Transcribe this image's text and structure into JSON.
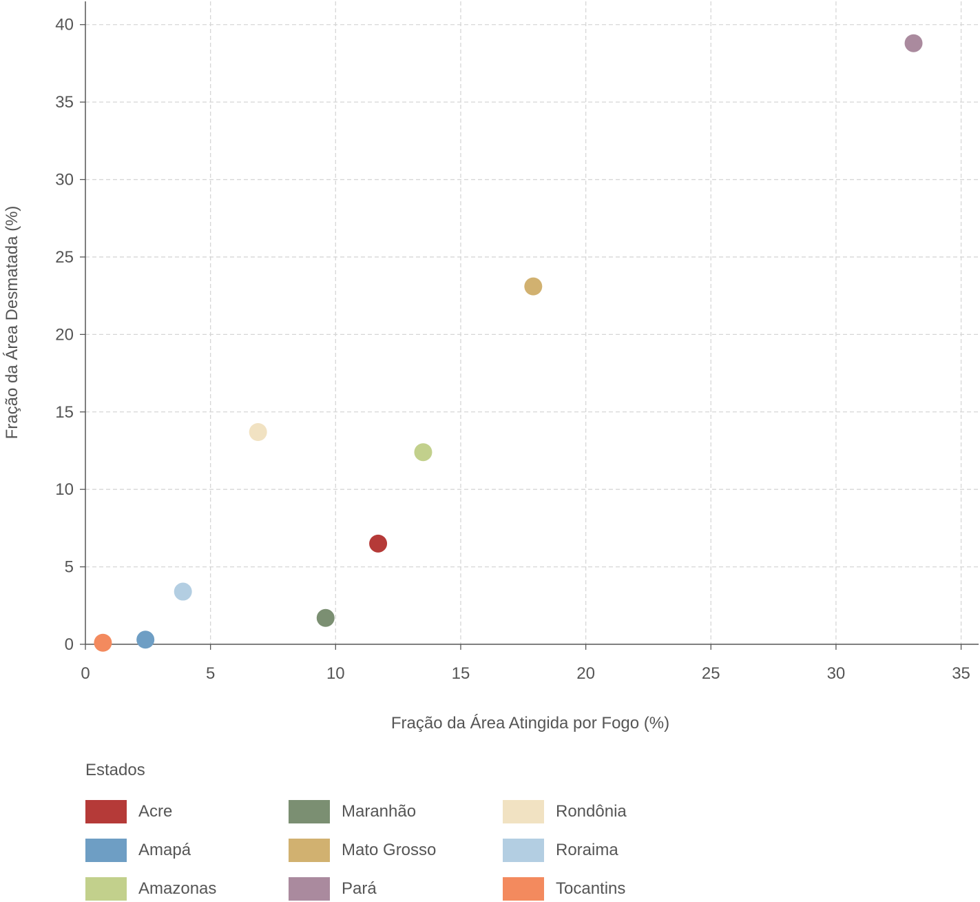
{
  "chart_data": {
    "type": "scatter",
    "title": "",
    "xlabel": "Fração da Área Atingida por Fogo (%)",
    "ylabel": "Fração da Área Desmatada (%)",
    "xlim": [
      0,
      35.7
    ],
    "ylim": [
      0,
      41.5
    ],
    "xticks": [
      0,
      5,
      10,
      15,
      20,
      25,
      30,
      35
    ],
    "yticks": [
      0,
      5,
      10,
      15,
      20,
      25,
      30,
      35,
      40
    ],
    "grid": true,
    "legend_title": "Estados",
    "legend_position": "bottom",
    "series": [
      {
        "name": "Acre",
        "color": "#b53a38",
        "x": 11.7,
        "y": 6.5
      },
      {
        "name": "Amapá",
        "color": "#6e9ec4",
        "x": 2.4,
        "y": 0.3
      },
      {
        "name": "Amazonas",
        "color": "#c2d08c",
        "x": 13.5,
        "y": 12.4
      },
      {
        "name": "Maranhão",
        "color": "#7b8f72",
        "x": 9.6,
        "y": 1.7
      },
      {
        "name": "Mato Grosso",
        "color": "#d1b170",
        "x": 17.9,
        "y": 23.1
      },
      {
        "name": "Pará",
        "color": "#aa8a9e",
        "x": 33.1,
        "y": 38.8
      },
      {
        "name": "Rondônia",
        "color": "#f1e2c2",
        "x": 6.9,
        "y": 13.7
      },
      {
        "name": "Roraima",
        "color": "#b3cee2",
        "x": 3.9,
        "y": 3.4
      },
      {
        "name": "Tocantins",
        "color": "#f38a5e",
        "x": 0.7,
        "y": 0.1
      }
    ]
  }
}
